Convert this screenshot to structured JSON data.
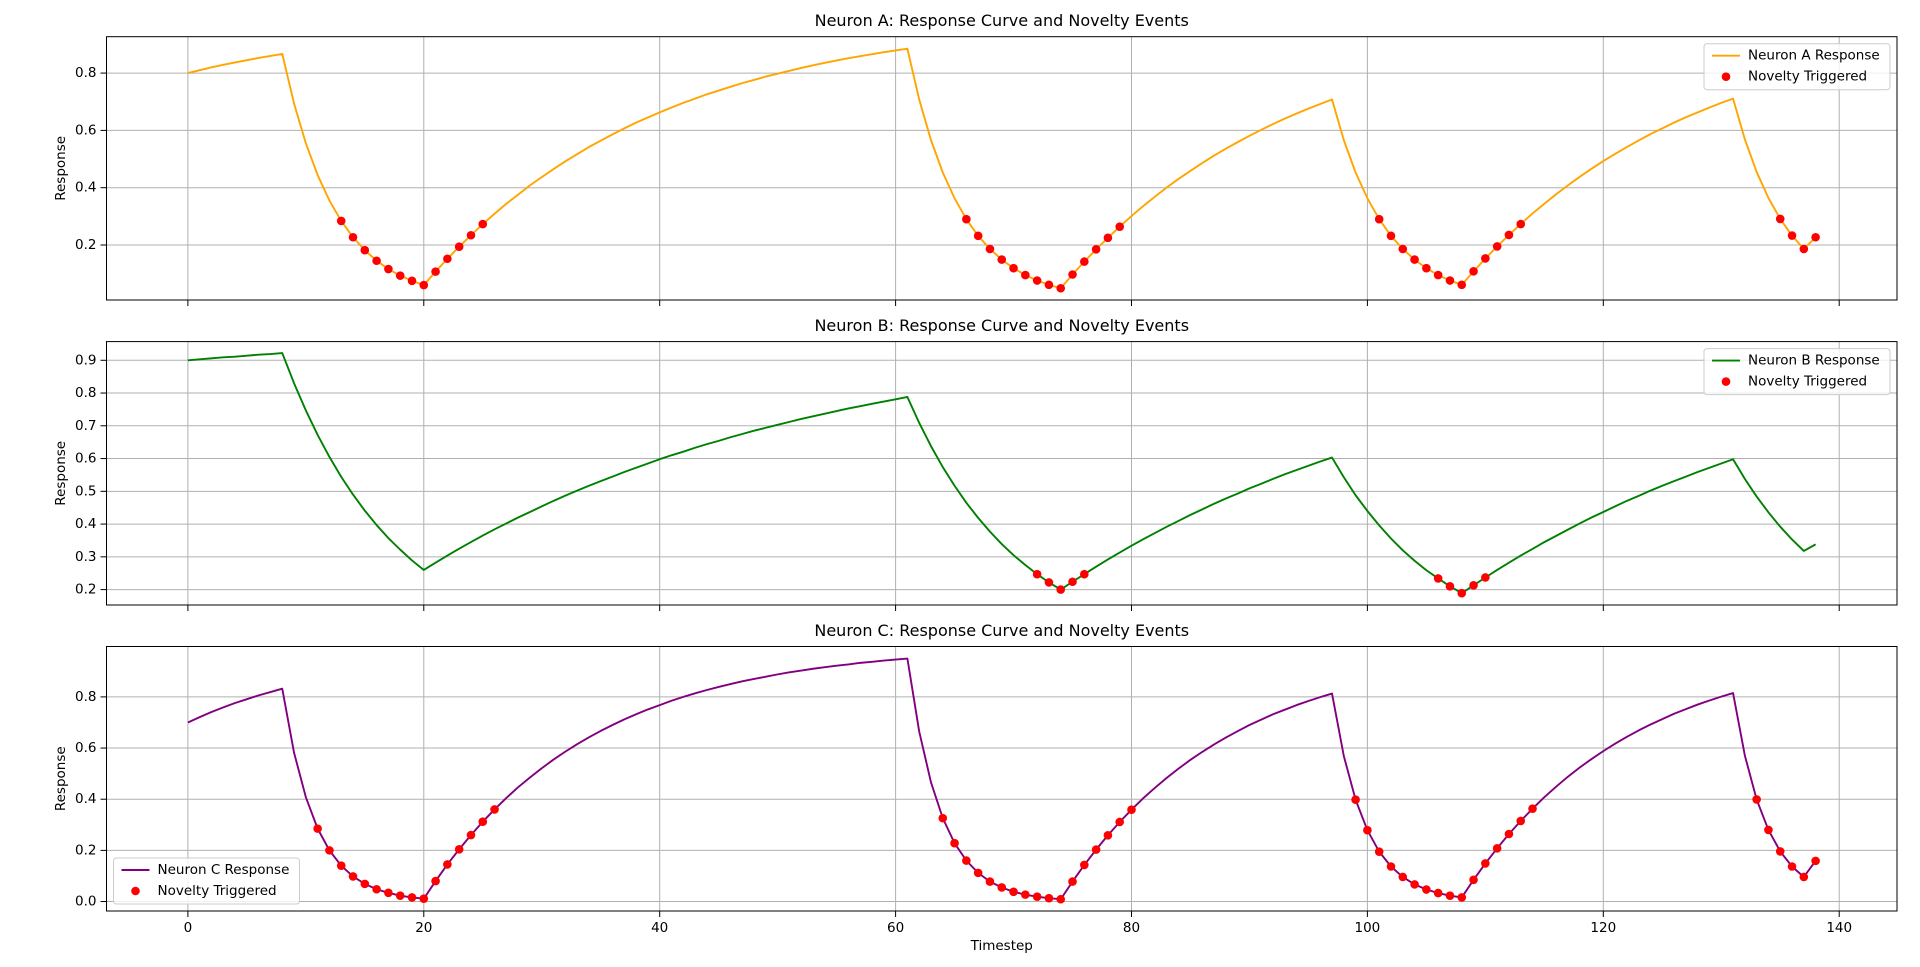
{
  "chart_data": [
    {
      "type": "line",
      "title": "Neuron A: Response Curve and Novelty Events",
      "ylabel": "Response",
      "x": [
        0,
        1,
        2,
        3,
        4,
        5,
        6,
        7,
        8,
        9,
        10,
        11,
        12,
        13,
        14,
        15,
        16,
        17,
        18,
        19,
        20,
        21,
        22,
        23,
        24,
        25,
        26,
        27,
        28,
        29,
        30,
        31,
        32,
        33,
        34,
        35,
        36,
        37,
        38,
        39,
        40,
        41,
        42,
        43,
        44,
        45,
        46,
        47,
        48,
        49,
        50,
        51,
        52,
        53,
        54,
        55,
        56,
        57,
        58,
        59,
        60,
        61,
        62,
        63,
        64,
        65,
        66,
        67,
        68,
        69,
        70,
        71,
        72,
        73,
        74,
        75,
        76,
        77,
        78,
        79,
        80,
        81,
        82,
        83,
        84,
        85,
        86,
        87,
        88,
        89,
        90,
        91,
        92,
        93,
        94,
        95,
        96,
        97,
        98,
        99,
        100,
        101,
        102,
        103,
        104,
        105,
        106,
        107,
        108,
        109,
        110,
        111,
        112,
        113,
        114,
        115,
        116,
        117,
        118,
        119,
        120,
        121,
        122,
        123,
        124,
        125,
        126,
        127,
        128,
        129,
        130,
        131,
        132,
        133,
        134,
        135,
        136,
        137,
        138
      ],
      "series": [
        {
          "name": "Neuron A Response",
          "color": "#ffa500",
          "values": [
            0.8,
            0.81,
            0.82,
            0.829,
            0.837,
            0.845,
            0.853,
            0.86,
            0.867,
            0.694,
            0.555,
            0.444,
            0.355,
            0.284,
            0.227,
            0.182,
            0.145,
            0.116,
            0.093,
            0.075,
            0.06,
            0.107,
            0.152,
            0.194,
            0.234,
            0.273,
            0.309,
            0.344,
            0.376,
            0.408,
            0.437,
            0.465,
            0.492,
            0.517,
            0.542,
            0.564,
            0.586,
            0.607,
            0.627,
            0.645,
            0.663,
            0.68,
            0.696,
            0.711,
            0.726,
            0.739,
            0.752,
            0.765,
            0.776,
            0.788,
            0.798,
            0.808,
            0.818,
            0.827,
            0.836,
            0.844,
            0.852,
            0.859,
            0.866,
            0.873,
            0.879,
            0.885,
            0.708,
            0.566,
            0.453,
            0.363,
            0.29,
            0.232,
            0.186,
            0.149,
            0.119,
            0.095,
            0.076,
            0.061,
            0.049,
            0.097,
            0.142,
            0.185,
            0.225,
            0.264,
            0.301,
            0.336,
            0.369,
            0.401,
            0.431,
            0.459,
            0.486,
            0.512,
            0.536,
            0.559,
            0.581,
            0.602,
            0.622,
            0.641,
            0.659,
            0.676,
            0.692,
            0.708,
            0.566,
            0.453,
            0.363,
            0.29,
            0.232,
            0.186,
            0.149,
            0.119,
            0.095,
            0.076,
            0.061,
            0.108,
            0.153,
            0.195,
            0.235,
            0.273,
            0.31,
            0.344,
            0.377,
            0.408,
            0.438,
            0.466,
            0.493,
            0.518,
            0.542,
            0.565,
            0.587,
            0.607,
            0.627,
            0.646,
            0.663,
            0.68,
            0.696,
            0.711,
            0.569,
            0.455,
            0.364,
            0.291,
            0.233,
            0.186,
            0.227
          ]
        },
        {
          "name": "Novelty Triggered",
          "color": "#ff0000",
          "type": "scatter",
          "x": [
            13,
            14,
            15,
            16,
            17,
            18,
            19,
            20,
            21,
            22,
            23,
            24,
            25,
            66,
            67,
            68,
            69,
            70,
            71,
            72,
            73,
            74,
            75,
            76,
            77,
            78,
            79,
            101,
            102,
            103,
            104,
            105,
            106,
            107,
            108,
            109,
            110,
            111,
            112,
            113,
            135,
            136,
            137,
            138
          ],
          "values": [
            0.284,
            0.227,
            0.182,
            0.145,
            0.116,
            0.093,
            0.075,
            0.06,
            0.107,
            0.152,
            0.194,
            0.234,
            0.273,
            0.29,
            0.232,
            0.186,
            0.149,
            0.119,
            0.095,
            0.076,
            0.061,
            0.049,
            0.097,
            0.142,
            0.185,
            0.225,
            0.264,
            0.29,
            0.232,
            0.186,
            0.149,
            0.119,
            0.095,
            0.076,
            0.061,
            0.108,
            0.153,
            0.195,
            0.235,
            0.273,
            0.291,
            0.233,
            0.186,
            0.227
          ]
        }
      ],
      "xlim": [
        -6.9,
        144.9
      ],
      "xticks": [
        0,
        20,
        40,
        60,
        80,
        100,
        120,
        140
      ],
      "show_xticklabels": false,
      "ylim": [
        0.008,
        0.927
      ],
      "yticks": [
        0.2,
        0.4,
        0.6,
        0.8
      ],
      "grid": true,
      "legend": "upper right"
    },
    {
      "type": "line",
      "title": "Neuron B: Response Curve and Novelty Events",
      "ylabel": "Response",
      "x": [
        0,
        1,
        2,
        3,
        4,
        5,
        6,
        7,
        8,
        9,
        10,
        11,
        12,
        13,
        14,
        15,
        16,
        17,
        18,
        19,
        20,
        21,
        22,
        23,
        24,
        25,
        26,
        27,
        28,
        29,
        30,
        31,
        32,
        33,
        34,
        35,
        36,
        37,
        38,
        39,
        40,
        41,
        42,
        43,
        44,
        45,
        46,
        47,
        48,
        49,
        50,
        51,
        52,
        53,
        54,
        55,
        56,
        57,
        58,
        59,
        60,
        61,
        62,
        63,
        64,
        65,
        66,
        67,
        68,
        69,
        70,
        71,
        72,
        73,
        74,
        75,
        76,
        77,
        78,
        79,
        80,
        81,
        82,
        83,
        84,
        85,
        86,
        87,
        88,
        89,
        90,
        91,
        92,
        93,
        94,
        95,
        96,
        97,
        98,
        99,
        100,
        101,
        102,
        103,
        104,
        105,
        106,
        107,
        108,
        109,
        110,
        111,
        112,
        113,
        114,
        115,
        116,
        117,
        118,
        119,
        120,
        121,
        122,
        123,
        124,
        125,
        126,
        127,
        128,
        129,
        130,
        131,
        132,
        133,
        134,
        135,
        136,
        137,
        138
      ],
      "series": [
        {
          "name": "Neuron B Response",
          "color": "#008000",
          "values": [
            0.9,
            0.903,
            0.906,
            0.909,
            0.911,
            0.914,
            0.917,
            0.919,
            0.922,
            0.83,
            0.747,
            0.672,
            0.605,
            0.544,
            0.49,
            0.441,
            0.397,
            0.357,
            0.322,
            0.289,
            0.26,
            0.282,
            0.304,
            0.325,
            0.345,
            0.365,
            0.384,
            0.402,
            0.42,
            0.437,
            0.454,
            0.471,
            0.487,
            0.502,
            0.517,
            0.531,
            0.545,
            0.559,
            0.572,
            0.585,
            0.598,
            0.61,
            0.621,
            0.633,
            0.644,
            0.654,
            0.665,
            0.675,
            0.685,
            0.694,
            0.703,
            0.712,
            0.721,
            0.729,
            0.737,
            0.745,
            0.753,
            0.76,
            0.767,
            0.774,
            0.781,
            0.788,
            0.709,
            0.638,
            0.574,
            0.517,
            0.465,
            0.419,
            0.377,
            0.339,
            0.305,
            0.275,
            0.247,
            0.222,
            0.2,
            0.224,
            0.247,
            0.27,
            0.292,
            0.313,
            0.334,
            0.354,
            0.373,
            0.392,
            0.41,
            0.428,
            0.445,
            0.462,
            0.478,
            0.493,
            0.509,
            0.523,
            0.538,
            0.552,
            0.565,
            0.578,
            0.591,
            0.603,
            0.543,
            0.488,
            0.44,
            0.396,
            0.356,
            0.32,
            0.288,
            0.259,
            0.234,
            0.21,
            0.189,
            0.213,
            0.237,
            0.26,
            0.282,
            0.304,
            0.324,
            0.345,
            0.364,
            0.383,
            0.402,
            0.42,
            0.437,
            0.454,
            0.471,
            0.486,
            0.502,
            0.517,
            0.531,
            0.545,
            0.559,
            0.572,
            0.585,
            0.598,
            0.538,
            0.484,
            0.436,
            0.392,
            0.353,
            0.318,
            0.338
          ]
        },
        {
          "name": "Novelty Triggered",
          "color": "#ff0000",
          "type": "scatter",
          "x": [
            72,
            73,
            74,
            75,
            76,
            106,
            107,
            108,
            109,
            110
          ],
          "values": [
            0.247,
            0.222,
            0.2,
            0.224,
            0.247,
            0.234,
            0.21,
            0.189,
            0.213,
            0.237
          ]
        }
      ],
      "xlim": [
        -6.9,
        144.9
      ],
      "xticks": [
        0,
        20,
        40,
        60,
        80,
        100,
        120,
        140
      ],
      "show_xticklabels": false,
      "ylim": [
        0.153,
        0.957
      ],
      "yticks": [
        0.2,
        0.3,
        0.4,
        0.5,
        0.6,
        0.7,
        0.8,
        0.9
      ],
      "grid": true,
      "legend": "upper right"
    },
    {
      "type": "line",
      "title": "Neuron C: Response Curve and Novelty Events",
      "ylabel": "Response",
      "xlabel": "Timestep",
      "x": [
        0,
        1,
        2,
        3,
        4,
        5,
        6,
        7,
        8,
        9,
        10,
        11,
        12,
        13,
        14,
        15,
        16,
        17,
        18,
        19,
        20,
        21,
        22,
        23,
        24,
        25,
        26,
        27,
        28,
        29,
        30,
        31,
        32,
        33,
        34,
        35,
        36,
        37,
        38,
        39,
        40,
        41,
        42,
        43,
        44,
        45,
        46,
        47,
        48,
        49,
        50,
        51,
        52,
        53,
        54,
        55,
        56,
        57,
        58,
        59,
        60,
        61,
        62,
        63,
        64,
        65,
        66,
        67,
        68,
        69,
        70,
        71,
        72,
        73,
        74,
        75,
        76,
        77,
        78,
        79,
        80,
        81,
        82,
        83,
        84,
        85,
        86,
        87,
        88,
        89,
        90,
        91,
        92,
        93,
        94,
        95,
        96,
        97,
        98,
        99,
        100,
        101,
        102,
        103,
        104,
        105,
        106,
        107,
        108,
        109,
        110,
        111,
        112,
        113,
        114,
        115,
        116,
        117,
        118,
        119,
        120,
        121,
        122,
        123,
        124,
        125,
        126,
        127,
        128,
        129,
        130,
        131,
        132,
        133,
        134,
        135,
        136,
        137,
        138
      ],
      "series": [
        {
          "name": "Neuron C Response",
          "color": "#800080",
          "values": [
            0.7,
            0.721,
            0.741,
            0.759,
            0.776,
            0.791,
            0.806,
            0.819,
            0.832,
            0.582,
            0.408,
            0.285,
            0.2,
            0.14,
            0.098,
            0.069,
            0.048,
            0.034,
            0.023,
            0.016,
            0.011,
            0.08,
            0.145,
            0.204,
            0.26,
            0.312,
            0.36,
            0.405,
            0.447,
            0.485,
            0.521,
            0.555,
            0.586,
            0.615,
            0.642,
            0.667,
            0.69,
            0.712,
            0.732,
            0.751,
            0.768,
            0.785,
            0.8,
            0.814,
            0.827,
            0.839,
            0.85,
            0.861,
            0.87,
            0.879,
            0.888,
            0.896,
            0.903,
            0.91,
            0.916,
            0.922,
            0.927,
            0.933,
            0.937,
            0.942,
            0.946,
            0.95,
            0.665,
            0.466,
            0.326,
            0.228,
            0.16,
            0.112,
            0.078,
            0.055,
            0.038,
            0.027,
            0.019,
            0.013,
            0.009,
            0.078,
            0.143,
            0.203,
            0.259,
            0.311,
            0.359,
            0.404,
            0.445,
            0.484,
            0.52,
            0.554,
            0.585,
            0.614,
            0.641,
            0.666,
            0.69,
            0.711,
            0.732,
            0.75,
            0.768,
            0.784,
            0.799,
            0.813,
            0.569,
            0.398,
            0.279,
            0.195,
            0.137,
            0.096,
            0.067,
            0.047,
            0.033,
            0.023,
            0.016,
            0.085,
            0.149,
            0.208,
            0.264,
            0.315,
            0.363,
            0.408,
            0.449,
            0.488,
            0.524,
            0.557,
            0.588,
            0.617,
            0.644,
            0.669,
            0.692,
            0.713,
            0.734,
            0.752,
            0.77,
            0.786,
            0.801,
            0.815,
            0.571,
            0.399,
            0.28,
            0.196,
            0.137,
            0.096,
            0.159
          ]
        },
        {
          "name": "Novelty Triggered",
          "color": "#ff0000",
          "type": "scatter",
          "x": [
            11,
            12,
            13,
            14,
            15,
            16,
            17,
            18,
            19,
            20,
            21,
            22,
            23,
            24,
            25,
            26,
            64,
            65,
            66,
            67,
            68,
            69,
            70,
            71,
            72,
            73,
            74,
            75,
            76,
            77,
            78,
            79,
            80,
            99,
            100,
            101,
            102,
            103,
            104,
            105,
            106,
            107,
            108,
            109,
            110,
            111,
            112,
            113,
            114,
            133,
            134,
            135,
            136,
            137,
            138
          ],
          "values": [
            0.285,
            0.2,
            0.14,
            0.098,
            0.069,
            0.048,
            0.034,
            0.023,
            0.016,
            0.011,
            0.08,
            0.145,
            0.204,
            0.26,
            0.312,
            0.36,
            0.326,
            0.228,
            0.16,
            0.112,
            0.078,
            0.055,
            0.038,
            0.027,
            0.019,
            0.013,
            0.009,
            0.078,
            0.143,
            0.203,
            0.259,
            0.311,
            0.359,
            0.398,
            0.279,
            0.195,
            0.137,
            0.096,
            0.067,
            0.047,
            0.033,
            0.023,
            0.016,
            0.085,
            0.149,
            0.208,
            0.264,
            0.315,
            0.363,
            0.399,
            0.28,
            0.196,
            0.137,
            0.096,
            0.159
          ]
        }
      ],
      "xlim": [
        -6.9,
        144.9
      ],
      "xticks": [
        0,
        20,
        40,
        60,
        80,
        100,
        120,
        140
      ],
      "show_xticklabels": true,
      "ylim": [
        -0.037,
        0.997
      ],
      "yticks": [
        {
          "value": 0,
          "label": "0.0"
        },
        0.2,
        0.4,
        0.6,
        0.8
      ],
      "grid": true,
      "legend": "lower left"
    }
  ]
}
